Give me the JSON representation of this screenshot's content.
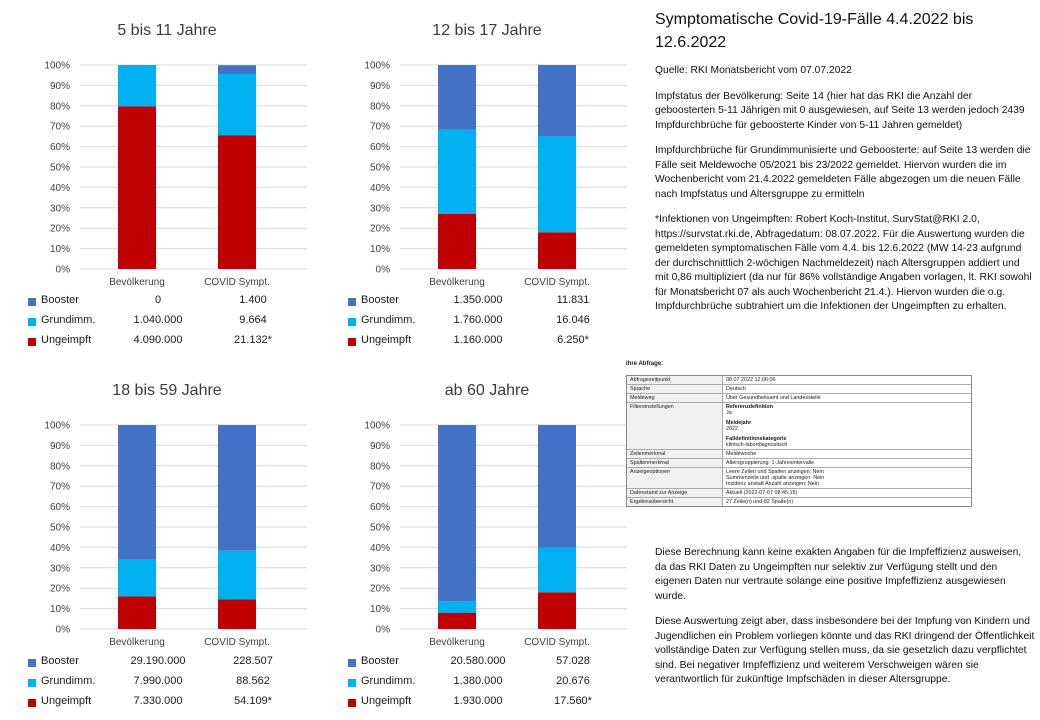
{
  "charts_meta": {
    "y_ticks": [
      "0%",
      "10%",
      "20%",
      "30%",
      "40%",
      "50%",
      "60%",
      "70%",
      "80%",
      "90%",
      "100%"
    ],
    "x_categories": [
      "Bevölkerung",
      "COVID Sympt."
    ],
    "legend": [
      "Booster",
      "Grundimm.",
      "Ungeimpft"
    ],
    "colors": {
      "Booster": "#4472C4",
      "Grundimm.": "#00B0F0",
      "Ungeimpft": "#C00000"
    }
  },
  "tables": [
    {
      "rows": [
        [
          "0",
          "1.400"
        ],
        [
          "1.040.000",
          "9.664"
        ],
        [
          "4.090.000",
          "21.132*"
        ]
      ]
    },
    {
      "rows": [
        [
          "1.350.000",
          "11.831"
        ],
        [
          "1.760.000",
          "16.046"
        ],
        [
          "1.160.000",
          "6.250*"
        ]
      ]
    },
    {
      "rows": [
        [
          "29.190.000",
          "228.507"
        ],
        [
          "7.990.000",
          "88.562"
        ],
        [
          "7.330.000",
          "54.109*"
        ]
      ]
    },
    {
      "rows": [
        [
          "20.580.000",
          "57.028"
        ],
        [
          "1.380.000",
          "20.676"
        ],
        [
          "1.930.000",
          "17.560*"
        ]
      ]
    }
  ],
  "chart_data": [
    {
      "type": "bar",
      "title": "5 bis 11 Jahre",
      "categories": [
        "Bevölkerung",
        "COVID Sympt."
      ],
      "ylim": [
        0,
        100
      ],
      "series": [
        {
          "name": "Ungeimpft",
          "values": [
            79.7,
            65.6
          ]
        },
        {
          "name": "Grundimm.",
          "values": [
            20.3,
            30.0
          ]
        },
        {
          "name": "Booster",
          "values": [
            0.0,
            4.3
          ]
        }
      ]
    },
    {
      "type": "bar",
      "title": "12 bis 17 Jahre",
      "categories": [
        "Bevölkerung",
        "COVID Sympt."
      ],
      "ylim": [
        0,
        100
      ],
      "series": [
        {
          "name": "Ungeimpft",
          "values": [
            27.1,
            18.0
          ]
        },
        {
          "name": "Grundimm.",
          "values": [
            41.1,
            47.0
          ]
        },
        {
          "name": "Booster",
          "values": [
            31.8,
            35.0
          ]
        }
      ]
    },
    {
      "type": "bar",
      "title": "18 bis 59 Jahre",
      "categories": [
        "Bevölkerung",
        "COVID Sympt."
      ],
      "ylim": [
        0,
        100
      ],
      "series": [
        {
          "name": "Ungeimpft",
          "values": [
            16.0,
            14.6
          ]
        },
        {
          "name": "Grundimm.",
          "values": [
            18.0,
            23.8
          ]
        },
        {
          "name": "Booster",
          "values": [
            66.0,
            61.6
          ]
        }
      ]
    },
    {
      "type": "bar",
      "title": "ab 60 Jahre",
      "categories": [
        "Bevölkerung",
        "COVID Sympt."
      ],
      "ylim": [
        0,
        100
      ],
      "series": [
        {
          "name": "Ungeimpft",
          "values": [
            8.0,
            18.0
          ]
        },
        {
          "name": "Grundimm.",
          "values": [
            5.7,
            21.9
          ]
        },
        {
          "name": "Booster",
          "values": [
            86.3,
            60.1
          ]
        }
      ]
    }
  ],
  "right": {
    "title": "Symptomatische Covid-19-Fälle 4.4.2022 bis 12.6.2022",
    "p1": "Quelle: RKI Monatsbericht vom 07.07.2022",
    "p2": "Impfstatus der Bevölkerung: Seite 14 (hier hat das RKI die Anzahl der geboosterten 5-11 Jährigen mit 0 ausgewiesen, auf Seite 13 werden jedoch 2439 Impfdurchbrüche für geboosterte Kinder von 5-11 Jahren gemeldet)",
    "p3": "Impfdurchbrüche für Grundimmunisierte und Geboosterte: auf Seite 13 werden die Fälle seit Meldewoche 05/2021 bis 23/2022 gemeldet. Hiervon wurden die im Wochenbericht vom 21.4.2022 gemeldeten Fälle abgezogen um die neuen Fälle nach Impfstatus und Altersgruppe zu ermitteln",
    "p4": "*Infektionen von Ungeimpften: Robert Koch-Institut, SurvStat@RKI 2.0, https://survstat.rki.de, Abfragedatum: 08.07.2022. Für die Auswertung wurden die gemeldeten symptomatischen Fälle vom 4.4. bis 12.6.2022 (MW 14-23 aufgrund der durchschnittlich 2-wöchigen Nachmeldezeit) nach Altersgruppen addiert und mit 0,86 multipliziert (da nur für 86% vollständige Angaben vorlagen, lt. RKI sowohl für Monatsbericht 07 als auch Wochenbericht 21.4.). Hiervon wurden die o.g. Impfdurchbrüche subtrahiert um die Infektionen der Ungeimpften zu erhalten.",
    "p5": "Diese Berechnung kann keine exakten Angaben für die Impfeffizienz ausweisen, da das RKI Daten zu Ungeimpften nur selektiv zur Verfügung stellt und den eigenen Daten nur vertraute solange eine positive Impfeffizienz ausgewiesen wurde.",
    "p6": "Diese Auswertung zeigt aber, dass insbesondere bei der Impfung von Kindern und Jugendlichen ein Problem vorliegen könnte und das RKI dringend der Öffentlichkeit vollständige Daten zur Verfügung stellen muss, da sie gesetzlich dazu verpflichtet sind. Bei negativer Impfeffizienz und weiterem Verschweigen wären sie verantwortlich für zukünftige Impfschäden in dieser Altersgruppe."
  },
  "abfrage": {
    "heading": "Ihre Abfrage:",
    "rows": [
      {
        "k": "Abfragezeitpunkt",
        "v": "08.07.2022 12:06:06"
      },
      {
        "k": "Sprache",
        "v": "Deutsch"
      },
      {
        "k": "Meldeweg",
        "v": "Über Gesundheitsamt und Landesstelle"
      },
      {
        "k": "Filtereinstellungen",
        "v1": "Referenzdefinition",
        "v2": "Ja",
        "v3": "Meldejahr",
        "v4": "2022",
        "v5": "Falldefinitionskategorie",
        "v6": "klinisch-labordiagnostisch"
      },
      {
        "k": "Zeilenmerkmal",
        "v": "Meldewoche"
      },
      {
        "k": "Spaltenmerkmal",
        "v": "Altersgruppierung: 1-Jahresintervalle"
      },
      {
        "k": "Anzeigeoptionen",
        "v1": "Leere Zeilen und Spalten anzeigen: Nein",
        "v2": "Summenzeile und -spalte anzeigen: Nein",
        "v3": "Inzidenz anstatt Anzahl anzeigen: Nein"
      },
      {
        "k": "Datenstand zur Anzeige",
        "v": "Aktuell (2022-07-07 08:45:15)"
      },
      {
        "k": "Ergebnisübersicht",
        "v": "27 Zeile(n) und 82 Spalte(n)"
      }
    ]
  }
}
